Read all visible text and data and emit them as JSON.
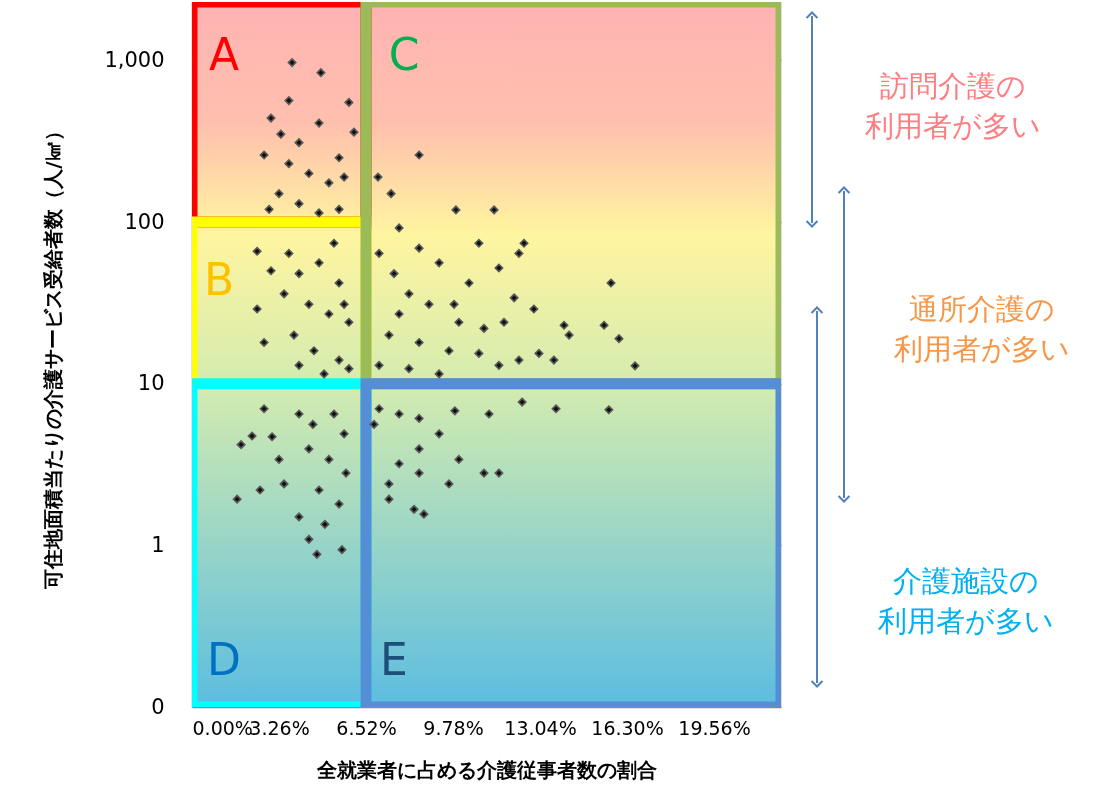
{
  "chart_data": {
    "type": "scatter",
    "xlabel": "全就業者に占める介護従事者数の割合",
    "ylabel": "可住地面積当たりの介護サービス受給者数（人/㎢）",
    "log": "y",
    "grid": true,
    "marker": "diamond",
    "xlim": [
      0,
      22.07
    ],
    "ylim": [
      0.1,
      2300
    ],
    "xticks": [
      {
        "value": 0,
        "label": "0.00%"
      },
      {
        "value": 3.26,
        "label": "3.26%"
      },
      {
        "value": 6.52,
        "label": "6.52%"
      },
      {
        "value": 9.78,
        "label": "9.78%"
      },
      {
        "value": 13.04,
        "label": "13.04%"
      },
      {
        "value": 16.3,
        "label": "16.30%"
      },
      {
        "value": 19.56,
        "label": "19.56%"
      }
    ],
    "yticks": [
      {
        "value": 0.1,
        "label": "0"
      },
      1,
      10,
      100,
      {
        "value": 1000,
        "label": "1,000"
      }
    ],
    "series": [
      {
        "color": "#111111",
        "x": [
          3.75,
          4.83,
          3.63,
          2.96,
          3.33,
          4.01,
          5.88,
          2.7,
          5.51,
          4.38,
          5.13,
          3.26,
          6.07,
          4.76,
          4.01,
          5.51,
          2.89,
          4.76,
          3.63,
          5.7,
          2.44,
          2.96,
          2.44,
          2.7,
          3.63,
          4.01,
          4.76,
          5.51,
          4.38,
          5.13,
          5.88,
          3.82,
          4.57,
          5.51,
          4.01,
          4.95,
          5.88,
          3.45,
          5.32,
          5.7,
          2.7,
          2.25,
          1.84,
          3.0,
          3.26,
          1.69,
          2.55,
          3.45,
          4.38,
          5.13,
          5.7,
          4.76,
          5.51,
          4.01,
          4.38,
          4.68,
          5.62,
          4.98,
          5.77,
          5.32,
          4.01,
          4.53,
          8.51,
          9.89,
          11.32,
          6.97,
          7.46,
          7.76,
          8.51,
          9.26,
          7.01,
          7.57,
          8.13,
          8.88,
          9.82,
          10.38,
          11.5,
          12.25,
          10.75,
          12.44,
          12.07,
          12.81,
          13.94,
          15.44,
          15.7,
          14.13,
          16.0,
          16.6,
          7.38,
          8.51,
          9.63,
          10.75,
          11.5,
          12.25,
          13.0,
          13.56,
          8.13,
          7.01,
          7.76,
          10.0,
          10.94,
          11.69,
          9.26,
          7.01,
          7.76,
          8.51,
          9.26,
          9.85,
          11.13,
          12.37,
          13.64,
          15.62,
          11.5,
          10.94,
          10.0,
          8.51,
          7.76,
          8.51,
          7.38,
          8.32,
          8.69,
          9.63,
          7.38,
          6.82
        ],
        "values": [
          970,
          840,
          565,
          440,
          350,
          310,
          550,
          260,
          250,
          200,
          175,
          150,
          360,
          410,
          130,
          120,
          120,
          114,
          230,
          190,
          66,
          50,
          29,
          18,
          64,
          48,
          56,
          42,
          31,
          27,
          24,
          20,
          16,
          14,
          13,
          11.5,
          12.4,
          36,
          74,
          31,
          7.0,
          4.75,
          4.2,
          4.7,
          3.4,
          1.93,
          2.2,
          2.4,
          3.95,
          3.4,
          4.9,
          2.2,
          1.8,
          1.5,
          1.09,
          0.88,
          0.94,
          1.35,
          2.8,
          6.5,
          6.5,
          5.6,
          260,
          119,
          119,
          190,
          150,
          92,
          69,
          56,
          64,
          48,
          36,
          31,
          31,
          42,
          52,
          64,
          74,
          74,
          34,
          29,
          23,
          23,
          42,
          20,
          19,
          12.9,
          20,
          18,
          16,
          15.4,
          13,
          14,
          15.4,
          14,
          12.4,
          13,
          27,
          24,
          22,
          24,
          11.5,
          7.0,
          6.5,
          6.1,
          4.9,
          6.8,
          6.5,
          7.7,
          7.0,
          6.9,
          2.8,
          2.8,
          3.4,
          3.95,
          3.2,
          2.8,
          2.4,
          1.67,
          1.56,
          2.4,
          1.93,
          5.6
        ]
      }
    ],
    "annotations": [
      "A",
      "B",
      "C",
      "D",
      "E",
      "訪問介護の利用者が多い",
      "通所介護の利用者が多い",
      "介護施設の利用者が多い"
    ]
  }
}
